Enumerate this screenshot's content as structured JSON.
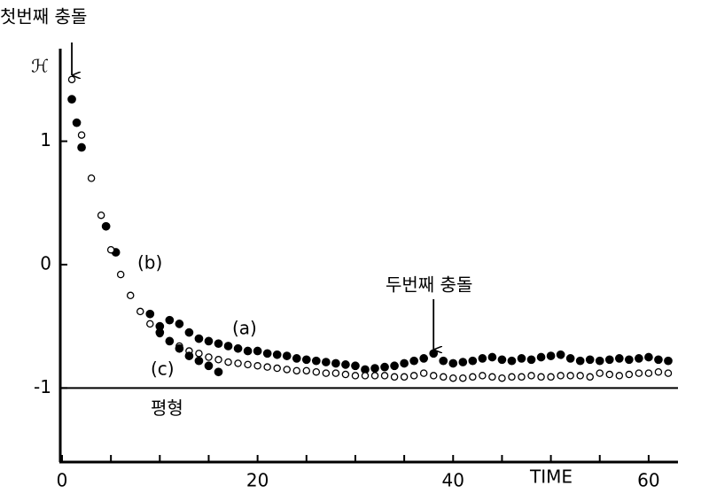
{
  "chart_data": {
    "type": "scatter",
    "x_label": "TIME",
    "y_label": "ℋ",
    "xlim": [
      0,
      63
    ],
    "ylim": [
      -1.6,
      1.75
    ],
    "xticks": [
      0,
      20,
      40,
      60
    ],
    "minor_xticks": [
      5,
      10,
      15,
      25,
      30,
      35,
      45,
      50,
      55
    ],
    "yticks": [
      1,
      0,
      -1
    ],
    "reference_line": {
      "y": -1,
      "label": "평형"
    },
    "annotations": [
      {
        "text": "첫번째 충돌",
        "x": 1
      },
      {
        "text": "두번째 충돌",
        "x": 38
      }
    ],
    "series": [
      {
        "name": "(a)",
        "color": "#000000",
        "marker": "filled",
        "x": [
          1,
          1.5,
          2,
          4.5,
          5.5,
          9,
          10,
          11,
          12,
          13,
          14,
          15,
          16,
          17,
          18,
          19,
          20,
          21,
          22,
          23,
          24,
          25,
          26,
          27,
          28,
          29,
          30,
          31,
          32,
          33,
          34,
          35,
          36,
          37,
          38,
          39,
          40,
          41,
          42,
          43,
          44,
          45,
          46,
          47,
          48,
          49,
          50,
          51,
          52,
          53,
          54,
          55,
          56,
          57,
          58,
          59,
          60,
          61,
          62
        ],
        "values": [
          1.34,
          1.15,
          0.95,
          0.31,
          0.1,
          -0.4,
          -0.5,
          -0.45,
          -0.48,
          -0.55,
          -0.6,
          -0.62,
          -0.64,
          -0.66,
          -0.68,
          -0.7,
          -0.7,
          -0.72,
          -0.73,
          -0.74,
          -0.76,
          -0.77,
          -0.78,
          -0.79,
          -0.8,
          -0.81,
          -0.82,
          -0.85,
          -0.84,
          -0.83,
          -0.82,
          -0.8,
          -0.78,
          -0.76,
          -0.72,
          -0.78,
          -0.8,
          -0.79,
          -0.78,
          -0.76,
          -0.75,
          -0.77,
          -0.78,
          -0.76,
          -0.77,
          -0.75,
          -0.74,
          -0.73,
          -0.76,
          -0.78,
          -0.77,
          -0.78,
          -0.77,
          -0.76,
          -0.77,
          -0.76,
          -0.75,
          -0.77,
          -0.78
        ]
      },
      {
        "name": "(b)",
        "color": "#000000",
        "marker": "open",
        "x": [
          1,
          2,
          3,
          4,
          5,
          6,
          7,
          8,
          9,
          10,
          11,
          12,
          13,
          14,
          15,
          16,
          17,
          18,
          19,
          20,
          21,
          22,
          23,
          24,
          25,
          26,
          27,
          28,
          29,
          30,
          31,
          32,
          33,
          34,
          35,
          36,
          37,
          38,
          39,
          40,
          41,
          42,
          43,
          44,
          45,
          46,
          47,
          48,
          49,
          50,
          51,
          52,
          53,
          54,
          55,
          56,
          57,
          58,
          59,
          60,
          61,
          62
        ],
        "values": [
          1.5,
          1.05,
          0.7,
          0.4,
          0.12,
          -0.08,
          -0.25,
          -0.38,
          -0.48,
          -0.56,
          -0.62,
          -0.66,
          -0.7,
          -0.72,
          -0.75,
          -0.77,
          -0.79,
          -0.8,
          -0.81,
          -0.82,
          -0.83,
          -0.84,
          -0.85,
          -0.86,
          -0.86,
          -0.87,
          -0.88,
          -0.88,
          -0.89,
          -0.9,
          -0.9,
          -0.9,
          -0.9,
          -0.91,
          -0.91,
          -0.9,
          -0.88,
          -0.9,
          -0.91,
          -0.92,
          -0.92,
          -0.91,
          -0.9,
          -0.91,
          -0.92,
          -0.91,
          -0.91,
          -0.9,
          -0.91,
          -0.91,
          -0.9,
          -0.9,
          -0.9,
          -0.91,
          -0.88,
          -0.89,
          -0.9,
          -0.89,
          -0.88,
          -0.88,
          -0.87,
          -0.88
        ]
      },
      {
        "name": "(c)",
        "color": "#000000",
        "marker": "filled",
        "x": [
          10,
          11,
          12,
          13,
          14,
          15,
          16
        ],
        "values": [
          -0.55,
          -0.62,
          -0.68,
          -0.74,
          -0.78,
          -0.82,
          -0.87
        ]
      }
    ]
  }
}
